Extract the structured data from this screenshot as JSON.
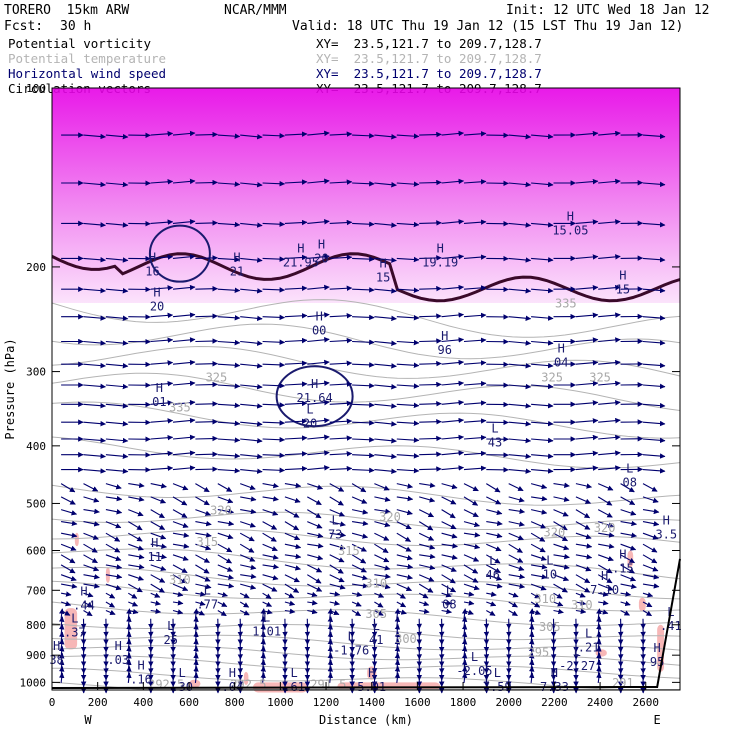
{
  "header": {
    "model": "TORERO  15km ARW",
    "org": "NCAR/MMM",
    "init": "Init: 12 UTC Wed 18 Jan 12",
    "fcst_label": "Fcst:",
    "fcst_value": "30 h",
    "valid": "Valid: 18 UTC Thu 19 Jan 12 (15 LST Thu 19 Jan 12)"
  },
  "fields": [
    {
      "name": "Potential vorticity",
      "xy": "XY=  23.5,121.7 to 209.7,128.7",
      "color": "#000000"
    },
    {
      "name": "Potential temperature",
      "xy": "XY=  23.5,121.7 to 209.7,128.7",
      "color": "#b4b4b4"
    },
    {
      "name": "Horizontal wind speed",
      "xy": "XY=  23.5,121.7 to 209.7,128.7",
      "color": "#00006e"
    },
    {
      "name": "Circulation vectors",
      "xy": "XY=  23.5,121.7 to 209.7,128.7",
      "color": "#000000"
    }
  ],
  "chart_data": {
    "type": "cross-section",
    "xlabel": "Distance (km)",
    "ylabel": "Pressure (hPa)",
    "x_range": [
      0,
      2750
    ],
    "y_range": [
      1030,
      100
    ],
    "y_scale": "log-pressure",
    "x_ticks": [
      0,
      200,
      400,
      600,
      800,
      1000,
      1200,
      1400,
      1600,
      1800,
      2000,
      2200,
      2400,
      2600
    ],
    "y_ticks": [
      100,
      200,
      300,
      400,
      500,
      600,
      700,
      800,
      900,
      1000
    ],
    "x_end_labels": {
      "left": "W",
      "right": "E"
    },
    "theta_labels": [
      {
        "text": "325",
        "x": 720,
        "p": 312
      },
      {
        "text": "325",
        "x": 2190,
        "p": 312
      },
      {
        "text": "325",
        "x": 2400,
        "p": 312
      },
      {
        "text": "320",
        "x": 740,
        "p": 522
      },
      {
        "text": "320",
        "x": 1480,
        "p": 535
      },
      {
        "text": "320",
        "x": 2200,
        "p": 568
      },
      {
        "text": "320",
        "x": 2420,
        "p": 558
      },
      {
        "text": "315",
        "x": 680,
        "p": 590
      },
      {
        "text": "315",
        "x": 1300,
        "p": 610
      },
      {
        "text": "310",
        "x": 560,
        "p": 683
      },
      {
        "text": "310",
        "x": 1420,
        "p": 692
      },
      {
        "text": "310",
        "x": 2160,
        "p": 735
      },
      {
        "text": "310",
        "x": 2320,
        "p": 752
      },
      {
        "text": "305",
        "x": 1420,
        "p": 780
      },
      {
        "text": "305",
        "x": 2180,
        "p": 820
      },
      {
        "text": "300",
        "x": 1550,
        "p": 858
      },
      {
        "text": "295",
        "x": 2130,
        "p": 905
      },
      {
        "text": "292.5",
        "x": 500,
        "p": 1025
      },
      {
        "text": "292.5",
        "x": 860,
        "p": 1025
      },
      {
        "text": "291.5",
        "x": 1210,
        "p": 1025
      },
      {
        "text": "291",
        "x": 2500,
        "p": 1018
      },
      {
        "text": "335",
        "x": 560,
        "p": 350
      },
      {
        "text": "335",
        "x": 2250,
        "p": 234
      }
    ],
    "extrema_labels": [
      {
        "type": "H",
        "value": "16",
        "x": 440,
        "p": 205
      },
      {
        "type": "H",
        "value": "21",
        "x": 810,
        "p": 205
      },
      {
        "type": "H",
        "value": "21.95",
        "x": 1090,
        "p": 198
      },
      {
        "type": "H",
        "value": "20",
        "x": 460,
        "p": 235
      },
      {
        "type": "H",
        "value": "20",
        "x": 1180,
        "p": 195
      },
      {
        "type": "H",
        "value": "15",
        "x": 1450,
        "p": 210
      },
      {
        "type": "H",
        "value": "19.19",
        "x": 1700,
        "p": 198
      },
      {
        "type": "H",
        "value": "15.05",
        "x": 2270,
        "p": 175
      },
      {
        "type": "H",
        "value": "15",
        "x": 2500,
        "p": 220
      },
      {
        "type": "H",
        "value": "00",
        "x": 1170,
        "p": 258
      },
      {
        "type": "H",
        "value": "96",
        "x": 1720,
        "p": 278
      },
      {
        "type": "H",
        "value": "04",
        "x": 2230,
        "p": 292
      },
      {
        "type": "H",
        "value": "01",
        "x": 470,
        "p": 340
      },
      {
        "type": "H",
        "value": "21.64",
        "x": 1150,
        "p": 335
      },
      {
        "type": "L",
        "value": "20",
        "x": 1130,
        "p": 370
      },
      {
        "type": "L",
        "value": "43",
        "x": 1940,
        "p": 398
      },
      {
        "type": "L",
        "value": "08",
        "x": 2530,
        "p": 465
      },
      {
        "type": "L",
        "value": "73",
        "x": 1240,
        "p": 568
      },
      {
        "type": "H",
        "value": "3.5",
        "x": 2690,
        "p": 568
      },
      {
        "type": "H",
        "value": "11",
        "x": 450,
        "p": 620
      },
      {
        "type": "L",
        "value": "46",
        "x": 1930,
        "p": 665
      },
      {
        "type": "L",
        "value": "10",
        "x": 2180,
        "p": 663
      },
      {
        "type": "H",
        "value": ".15",
        "x": 2500,
        "p": 648
      },
      {
        "type": "H",
        "value": "7.10",
        "x": 2420,
        "p": 705
      },
      {
        "type": "L",
        "value": "08",
        "x": 1740,
        "p": 745
      },
      {
        "type": "H",
        "value": ".44",
        "x": 140,
        "p": 748
      },
      {
        "type": "L",
        "value": ".77",
        "x": 680,
        "p": 745
      },
      {
        "type": "L",
        "value": ".37",
        "x": 100,
        "p": 830
      },
      {
        "type": "L",
        "value": "1.01",
        "x": 940,
        "p": 827
      },
      {
        "type": "L",
        "value": ".41",
        "x": 2710,
        "p": 810
      },
      {
        "type": "L",
        "value": "25",
        "x": 520,
        "p": 855
      },
      {
        "type": "L",
        "value": "41",
        "x": 1420,
        "p": 855
      },
      {
        "type": "L",
        "value": "-1.76",
        "x": 1310,
        "p": 890
      },
      {
        "type": "L",
        "value": ".21",
        "x": 2350,
        "p": 880
      },
      {
        "type": "H",
        "value": ".03",
        "x": 290,
        "p": 925
      },
      {
        "type": "H",
        "value": "38",
        "x": 20,
        "p": 925
      },
      {
        "type": "L",
        "value": "-2.27",
        "x": 2300,
        "p": 945
      },
      {
        "type": "H",
        "value": "95",
        "x": 2650,
        "p": 932
      },
      {
        "type": "L",
        "value": "-2.05",
        "x": 1850,
        "p": 965
      },
      {
        "type": "H",
        "value": ".16",
        "x": 390,
        "p": 997
      },
      {
        "type": "L",
        "value": ".30",
        "x": 570,
        "p": 1035
      },
      {
        "type": "H",
        "value": ".04",
        "x": 790,
        "p": 1055
      },
      {
        "type": "L",
        "value": ".61",
        "x": 1060,
        "p": 1063
      },
      {
        "type": "H",
        "value": "5.01",
        "x": 1400,
        "p": 1100
      },
      {
        "type": "L",
        "value": "7.59",
        "x": 1950,
        "p": 1035
      },
      {
        "type": "H",
        "value": "7.33",
        "x": 2200,
        "p": 1085
      }
    ]
  }
}
